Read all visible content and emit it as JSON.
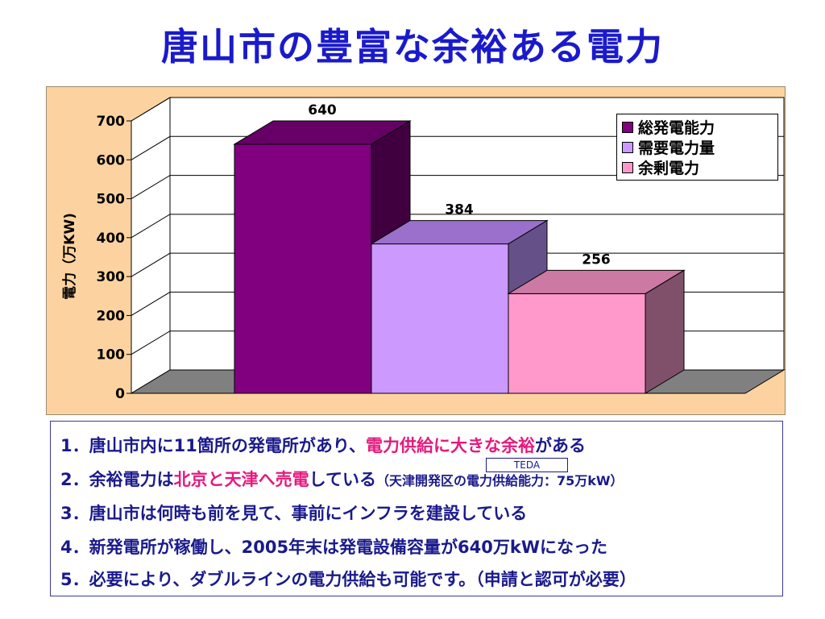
{
  "title": "唐山市の豊富な余裕ある電力",
  "chart_data": {
    "type": "bar",
    "categories": [
      "総発電能力",
      "需要電力量",
      "余剰電力"
    ],
    "values": [
      640,
      384,
      256
    ],
    "colors": [
      "#800080",
      "#cc99ff",
      "#ff99cc"
    ],
    "ylabel": "電力（万KW)",
    "ylim": [
      0,
      700
    ],
    "yticks": [
      "0",
      "100",
      "200",
      "300",
      "400",
      "500",
      "600",
      "700"
    ],
    "data_labels": [
      "640",
      "384",
      "256"
    ],
    "legend_position": "top-right",
    "grid": true
  },
  "legend": {
    "items": [
      {
        "label": "総発電能力",
        "color": "#800080"
      },
      {
        "label": "需要電力量",
        "color": "#cc99ff"
      },
      {
        "label": "余剰電力",
        "color": "#ff99cc"
      }
    ]
  },
  "notes": {
    "n1_a": "1．唐山市内に11箇所の発電所があり、",
    "n1_b": "電力供給に大きな余裕",
    "n1_c": "がある",
    "n2_a": "2．余裕電力は",
    "n2_b": "北京と天津へ売電",
    "n2_c": "している",
    "n2_d": "（天津開発区の電力供給能力：75万kW）",
    "n3": "3．唐山市は何時も前を見て、事前にインフラを建設している",
    "n4": "4．新発電所が稼働し、2005年末は発電設備容量が640万kWになった",
    "n5": "5．必要により、ダブルラインの電力供給も可能です。（申請と認可が必要）",
    "teda": "TEDA"
  }
}
